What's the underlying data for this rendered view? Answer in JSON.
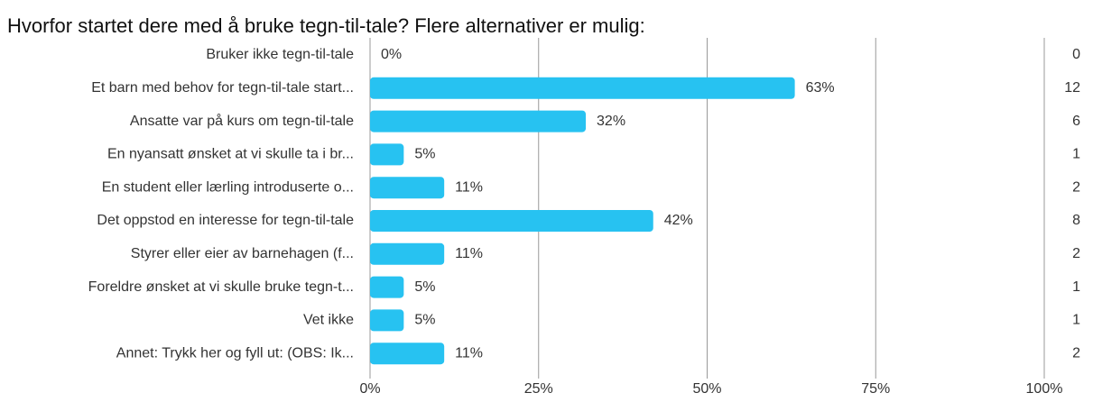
{
  "chart_data": {
    "type": "bar",
    "orientation": "horizontal",
    "title": "Hvorfor startet dere med å bruke tegn-til-tale? Flere alternativer er mulig:",
    "categories": [
      "Bruker ikke tegn-til-tale",
      "Et barn med behov for tegn-til-tale start...",
      "Ansatte var på kurs om tegn-til-tale",
      "En nyansatt ønsket at vi skulle ta i br...",
      "En student eller lærling introduserte o...",
      "Det oppstod en interesse for tegn-til-tale",
      "Styrer eller eier av barnehagen (f...",
      "Foreldre ønsket at vi skulle bruke tegn-t...",
      "Vet ikke",
      "Annet: Trykk her og fyll ut: (OBS: Ik..."
    ],
    "values": [
      0,
      63,
      32,
      5,
      11,
      42,
      11,
      5,
      5,
      11
    ],
    "value_labels": [
      "0%",
      "63%",
      "32%",
      "5%",
      "11%",
      "42%",
      "11%",
      "5%",
      "5%",
      "11%"
    ],
    "counts": [
      0,
      12,
      6,
      1,
      2,
      8,
      2,
      1,
      1,
      2
    ],
    "color": "#27c2f1",
    "xlim": [
      0,
      100
    ],
    "xticks": [
      {
        "value": 0,
        "label": "0%"
      },
      {
        "value": 25,
        "label": "25%"
      },
      {
        "value": 50,
        "label": "50%"
      },
      {
        "value": 75,
        "label": "75%"
      },
      {
        "value": 100,
        "label": "100%"
      }
    ],
    "grid": true
  }
}
